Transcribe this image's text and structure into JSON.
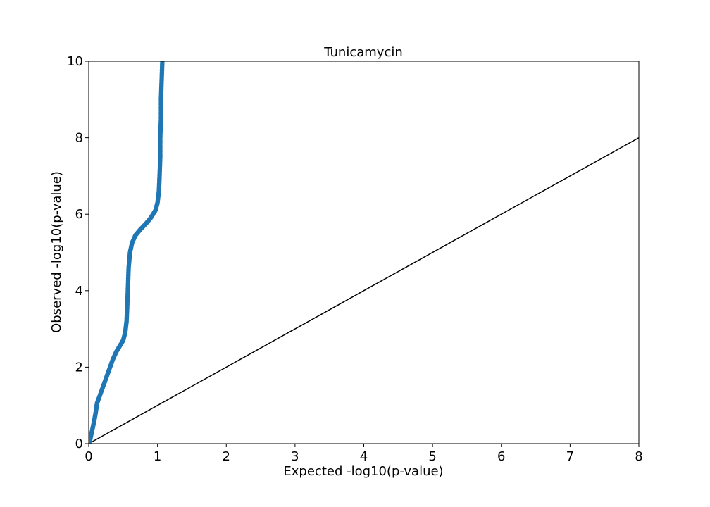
{
  "chart_data": {
    "type": "scatter",
    "title": "Tunicamycin",
    "xlabel": "Expected -log10(p-value)",
    "ylabel": "Observed -log10(p-value)",
    "xlim": [
      0,
      8
    ],
    "ylim": [
      0,
      10
    ],
    "xticks": [
      "0",
      "1",
      "2",
      "3",
      "4",
      "5",
      "6",
      "7",
      "8"
    ],
    "yticks": [
      "0",
      "2",
      "4",
      "6",
      "8",
      "10"
    ],
    "grid": false,
    "series": [
      {
        "color": "#1f77b4",
        "points": [
          [
            0.0,
            0.0
          ],
          [
            0.02,
            0.1
          ],
          [
            0.05,
            0.35
          ],
          [
            0.08,
            0.6
          ],
          [
            0.1,
            0.8
          ],
          [
            0.12,
            1.05
          ],
          [
            0.15,
            1.2
          ],
          [
            0.2,
            1.45
          ],
          [
            0.25,
            1.7
          ],
          [
            0.3,
            1.95
          ],
          [
            0.35,
            2.2
          ],
          [
            0.4,
            2.4
          ],
          [
            0.45,
            2.55
          ],
          [
            0.5,
            2.7
          ],
          [
            0.53,
            2.9
          ],
          [
            0.55,
            3.2
          ],
          [
            0.56,
            3.6
          ],
          [
            0.57,
            4.1
          ],
          [
            0.58,
            4.6
          ],
          [
            0.6,
            5.0
          ],
          [
            0.63,
            5.25
          ],
          [
            0.68,
            5.45
          ],
          [
            0.75,
            5.6
          ],
          [
            0.83,
            5.75
          ],
          [
            0.9,
            5.9
          ],
          [
            0.97,
            6.1
          ],
          [
            1.0,
            6.3
          ],
          [
            1.02,
            6.6
          ],
          [
            1.03,
            7.0
          ],
          [
            1.04,
            7.5
          ],
          [
            1.04,
            8.0
          ],
          [
            1.05,
            8.5
          ],
          [
            1.05,
            9.0
          ],
          [
            1.06,
            9.5
          ],
          [
            1.07,
            10.0
          ]
        ]
      },
      {
        "color": "#000000",
        "points": [
          [
            0,
            0
          ],
          [
            8,
            8
          ]
        ]
      }
    ]
  }
}
